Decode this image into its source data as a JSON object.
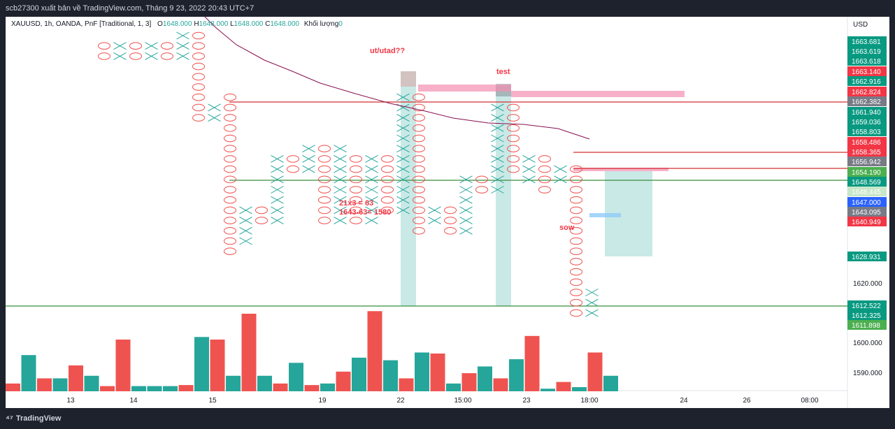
{
  "header": {
    "title": "scb27300 xuất bản về TradingView.com, Tháng 9 23, 2022 20:43 UTC+7"
  },
  "legend": {
    "symbol": "XAUUSD, 1h, OANDA, PnF [Traditional, 1, 3]",
    "o_label": "O",
    "o_value": "1648.000",
    "h_label": "H",
    "h_value": "1648.000",
    "l_label": "L",
    "l_value": "1648.000",
    "c_label": "C",
    "c_value": "1648.000",
    "vol_label": "Khối lượng",
    "vol_value": "0"
  },
  "footer": {
    "brand": "TradingView",
    "logo_icon": "tradingview-logo-icon"
  },
  "chart_data": {
    "type": "pnf",
    "currency": "USD",
    "y_ticks": [
      "1590.000",
      "1600.000",
      "1620.000"
    ],
    "x_ticks": [
      "13",
      "14",
      "15",
      "19",
      "22",
      "15:00",
      "23",
      "18:00",
      "24",
      "26",
      "08:00"
    ],
    "price_labels": [
      {
        "text": "1663.681",
        "color": "#089981"
      },
      {
        "text": "1663.619",
        "color": "#089981"
      },
      {
        "text": "1663.618",
        "color": "#089981"
      },
      {
        "text": "1663.140",
        "color": "#f23645"
      },
      {
        "text": "1662.916",
        "color": "#089981"
      },
      {
        "text": "1662.824",
        "color": "#f23645"
      },
      {
        "text": "1662.382",
        "color": "#787b86"
      },
      {
        "text": "1661.940",
        "color": "#089981"
      },
      {
        "text": "1659.036",
        "color": "#089981"
      },
      {
        "text": "1658.803",
        "color": "#089981"
      },
      {
        "text": "1658.486",
        "color": "#f23645"
      },
      {
        "text": "1658.365",
        "color": "#f23645"
      },
      {
        "text": "1656.942",
        "color": "#787b86"
      },
      {
        "text": "1654.190",
        "color": "#4caf50"
      },
      {
        "text": "1648.569",
        "color": "#089981"
      },
      {
        "text": "1648.445",
        "color": "#c8e6c9"
      },
      {
        "text": "1647.000",
        "color": "#2962ff"
      },
      {
        "text": "1643.095",
        "color": "#787b86"
      },
      {
        "text": "1640.949",
        "color": "#f23645"
      },
      {
        "text": "1628.931",
        "color": "#089981"
      },
      {
        "text": "1612.522",
        "color": "#089981"
      },
      {
        "text": "1612.325",
        "color": "#089981"
      },
      {
        "text": "1611.898",
        "color": "#4caf50"
      }
    ],
    "pnf_columns": [
      {
        "type": "O",
        "from": 1669,
        "to": 1668
      },
      {
        "type": "X",
        "from": 1668,
        "to": 1669
      },
      {
        "type": "O",
        "from": 1669,
        "to": 1668
      },
      {
        "type": "X",
        "from": 1668,
        "to": 1669
      },
      {
        "type": "O",
        "from": 1669,
        "to": 1668
      },
      {
        "type": "X",
        "from": 1668,
        "to": 1670
      },
      {
        "type": "O",
        "from": 1670,
        "to": 1662
      },
      {
        "type": "X",
        "from": 1662,
        "to": 1663
      },
      {
        "type": "O",
        "from": 1664,
        "to": 1649
      },
      {
        "type": "X",
        "from": 1650,
        "to": 1653
      },
      {
        "type": "O",
        "from": 1653,
        "to": 1652
      },
      {
        "type": "X",
        "from": 1652,
        "to": 1658
      },
      {
        "type": "O",
        "from": 1658,
        "to": 1657
      },
      {
        "type": "X",
        "from": 1657,
        "to": 1659
      },
      {
        "type": "O",
        "from": 1659,
        "to": 1652
      },
      {
        "type": "X",
        "from": 1652,
        "to": 1659
      },
      {
        "type": "O",
        "from": 1658,
        "to": 1652
      },
      {
        "type": "X",
        "from": 1652,
        "to": 1658
      },
      {
        "type": "O",
        "from": 1658,
        "to": 1653
      },
      {
        "type": "X",
        "from": 1653,
        "to": 1664
      },
      {
        "type": "O",
        "from": 1664,
        "to": 1651
      },
      {
        "type": "X",
        "from": 1652,
        "to": 1653
      },
      {
        "type": "O",
        "from": 1653,
        "to": 1651
      },
      {
        "type": "X",
        "from": 1651,
        "to": 1656
      },
      {
        "type": "O",
        "from": 1656,
        "to": 1655
      },
      {
        "type": "X",
        "from": 1655,
        "to": 1663
      },
      {
        "type": "O",
        "from": 1663,
        "to": 1657
      },
      {
        "type": "X",
        "from": 1656,
        "to": 1658
      },
      {
        "type": "O",
        "from": 1658,
        "to": 1655
      },
      {
        "type": "X",
        "from": 1656,
        "to": 1657
      },
      {
        "type": "O",
        "from": 1657,
        "to": 1643
      },
      {
        "type": "X",
        "from": 1643,
        "to": 1645
      }
    ],
    "volume": [
      {
        "v": 1.5,
        "c": "r"
      },
      {
        "v": 7,
        "c": "g"
      },
      {
        "v": 2.5,
        "c": "r"
      },
      {
        "v": 2.5,
        "c": "g"
      },
      {
        "v": 5,
        "c": "r"
      },
      {
        "v": 3,
        "c": "g"
      },
      {
        "v": 1,
        "c": "r"
      },
      {
        "v": 10,
        "c": "r"
      },
      {
        "v": 1,
        "c": "g"
      },
      {
        "v": 1,
        "c": "g"
      },
      {
        "v": 1,
        "c": "g"
      },
      {
        "v": 1.2,
        "c": "r"
      },
      {
        "v": 10.5,
        "c": "g"
      },
      {
        "v": 10,
        "c": "r"
      },
      {
        "v": 3,
        "c": "g"
      },
      {
        "v": 15,
        "c": "r"
      },
      {
        "v": 3,
        "c": "g"
      },
      {
        "v": 1.5,
        "c": "r"
      },
      {
        "v": 5.5,
        "c": "g"
      },
      {
        "v": 1.2,
        "c": "r"
      },
      {
        "v": 1.5,
        "c": "g"
      },
      {
        "v": 3.8,
        "c": "r"
      },
      {
        "v": 6.5,
        "c": "g"
      },
      {
        "v": 15.5,
        "c": "r"
      },
      {
        "v": 6,
        "c": "g"
      },
      {
        "v": 2.5,
        "c": "r"
      },
      {
        "v": 7.5,
        "c": "g"
      },
      {
        "v": 7.3,
        "c": "r"
      },
      {
        "v": 1.5,
        "c": "g"
      },
      {
        "v": 3.5,
        "c": "r"
      },
      {
        "v": 4.8,
        "c": "g"
      },
      {
        "v": 2.5,
        "c": "r"
      },
      {
        "v": 6.2,
        "c": "g"
      },
      {
        "v": 10.7,
        "c": "r"
      },
      {
        "v": 0.5,
        "c": "g"
      },
      {
        "v": 1.8,
        "c": "r"
      },
      {
        "v": 0.8,
        "c": "g"
      },
      {
        "v": 7.5,
        "c": "r"
      },
      {
        "v": 3,
        "c": "g"
      }
    ],
    "annotations": [
      {
        "text": "ut/utad??",
        "color": "#f23645"
      },
      {
        "text": "test",
        "color": "#f23645"
      },
      {
        "text": "21x3 = 63",
        "color": "#f23645"
      },
      {
        "text": "1643-63= 1580",
        "color": "#f23645"
      },
      {
        "text": "sow",
        "color": "#f23645"
      }
    ],
    "colors": {
      "x": "#26a69a",
      "o": "#ef5350",
      "ma": "#880e4f",
      "up": "#26a69a",
      "down": "#ef5350"
    }
  }
}
